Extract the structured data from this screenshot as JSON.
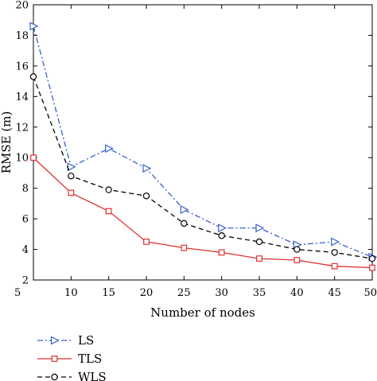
{
  "chart_data": {
    "type": "line",
    "xlabel": "Number of nodes",
    "ylabel": "RMSE (m)",
    "x": [
      5,
      10,
      15,
      20,
      25,
      30,
      35,
      40,
      45,
      50
    ],
    "xlim": [
      5,
      50
    ],
    "ylim": [
      2,
      20
    ],
    "xticks": [
      5,
      10,
      15,
      20,
      25,
      30,
      35,
      40,
      45,
      50
    ],
    "yticks": [
      2,
      4,
      6,
      8,
      10,
      12,
      14,
      16,
      18,
      20
    ],
    "grid": false,
    "legend_position": "bottom-left",
    "series": [
      {
        "name": "LS",
        "color": "#3a5fcd",
        "dash": "dash-dot",
        "marker": "triangle-right",
        "values": [
          18.6,
          9.4,
          10.6,
          9.3,
          6.6,
          5.4,
          5.4,
          4.3,
          4.5,
          3.5
        ]
      },
      {
        "name": "TLS",
        "color": "#e03030",
        "dash": "solid",
        "marker": "square",
        "values": [
          10.0,
          7.7,
          6.5,
          4.5,
          4.1,
          3.8,
          3.4,
          3.3,
          2.9,
          2.8
        ]
      },
      {
        "name": "WLS",
        "color": "#000000",
        "dash": "dashed",
        "marker": "circle",
        "values": [
          15.3,
          8.8,
          7.9,
          7.5,
          5.7,
          4.9,
          4.5,
          4.0,
          3.8,
          3.4
        ]
      }
    ]
  }
}
